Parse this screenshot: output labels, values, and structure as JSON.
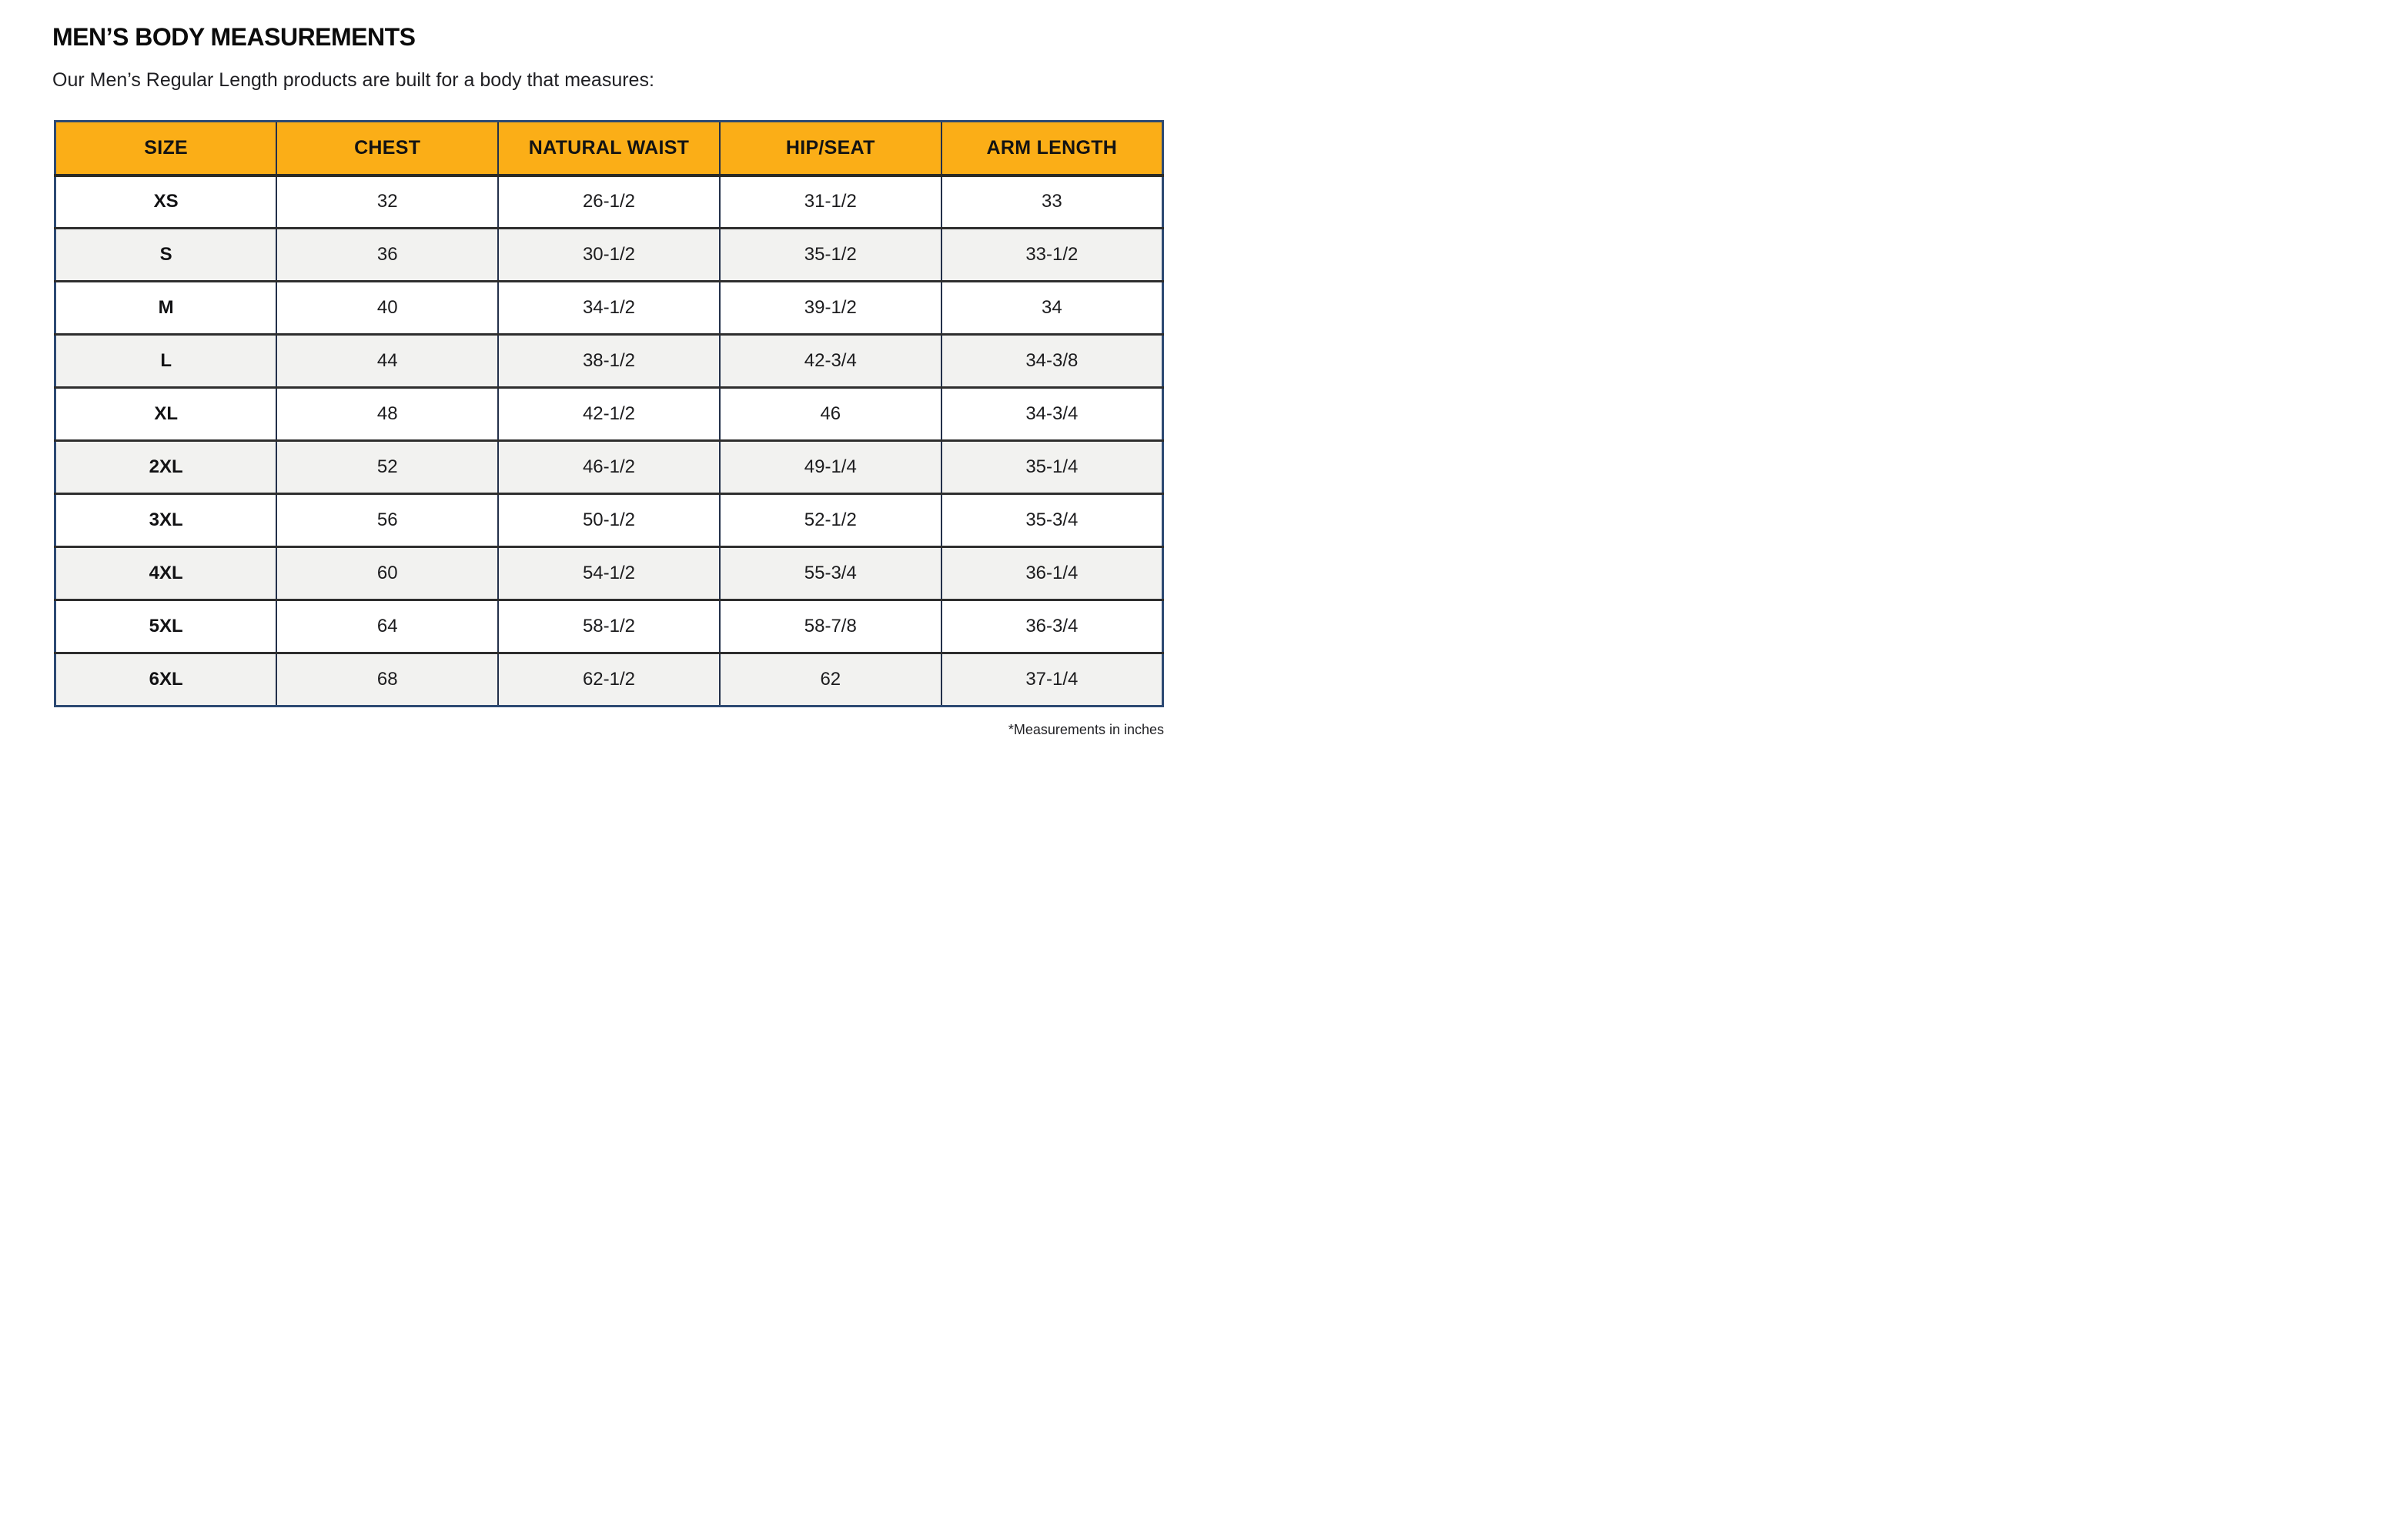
{
  "header": {
    "title": "MEN’S BODY MEASUREMENTS",
    "subtitle": "Our Men’s Regular Length products are built for a body that measures:"
  },
  "table": {
    "columns": [
      "SIZE",
      "CHEST",
      "NATURAL WAIST",
      "HIP/SEAT",
      "ARM LENGTH"
    ],
    "rows": [
      {
        "cells": [
          "XS",
          "32",
          "26-1/2",
          "31-1/2",
          "33"
        ]
      },
      {
        "cells": [
          "S",
          "36",
          "30-1/2",
          "35-1/2",
          "33-1/2"
        ]
      },
      {
        "cells": [
          "M",
          "40",
          "34-1/2",
          "39-1/2",
          "34"
        ]
      },
      {
        "cells": [
          "L",
          "44",
          "38-1/2",
          "42-3/4",
          "34-3/8"
        ]
      },
      {
        "cells": [
          "XL",
          "48",
          "42-1/2",
          "46",
          "34-3/4"
        ]
      },
      {
        "cells": [
          "2XL",
          "52",
          "46-1/2",
          "49-1/4",
          "35-1/4"
        ]
      },
      {
        "cells": [
          "3XL",
          "56",
          "50-1/2",
          "52-1/2",
          "35-3/4"
        ]
      },
      {
        "cells": [
          "4XL",
          "60",
          "54-1/2",
          "55-3/4",
          "36-1/4"
        ]
      },
      {
        "cells": [
          "5XL",
          "64",
          "58-1/2",
          "58-7/8",
          "36-3/4"
        ]
      },
      {
        "cells": [
          "6XL",
          "68",
          "62-1/2",
          "62",
          "37-1/4"
        ]
      }
    ]
  },
  "footnote": "*Measurements in inches",
  "colors": {
    "header_bg": "#FBAE17",
    "outer_border": "#2D4A73",
    "row_alt_bg": "#F2F2F0",
    "row_divider": "#2E2E2E",
    "text": "#1A1A1A"
  }
}
